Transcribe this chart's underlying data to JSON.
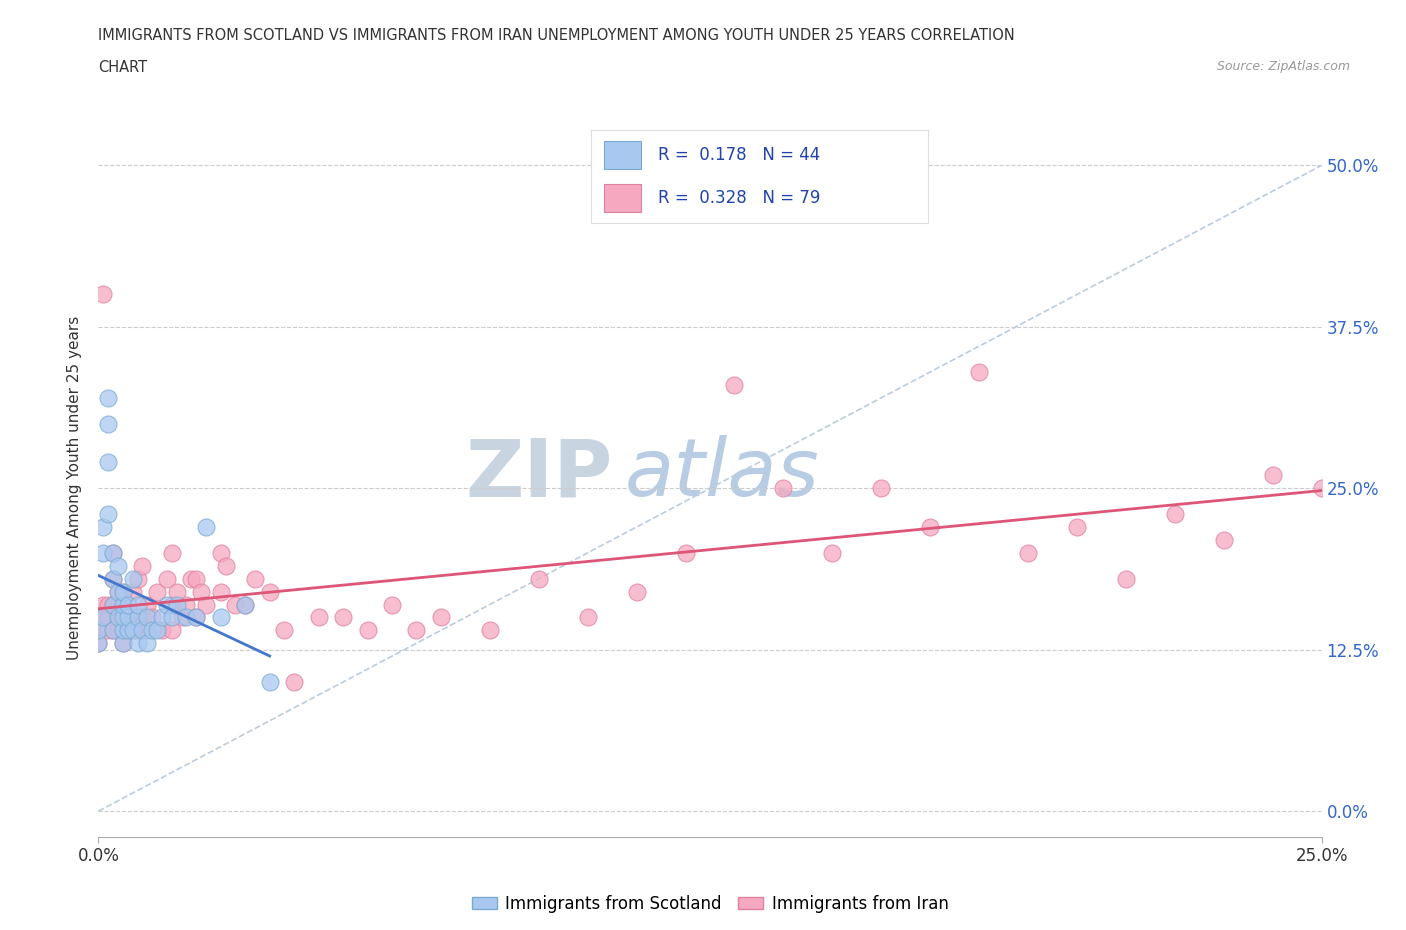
{
  "title_line1": "IMMIGRANTS FROM SCOTLAND VS IMMIGRANTS FROM IRAN UNEMPLOYMENT AMONG YOUTH UNDER 25 YEARS CORRELATION",
  "title_line2": "CHART",
  "source": "Source: ZipAtlas.com",
  "ylabel": "Unemployment Among Youth under 25 years",
  "xlabel_scotland": "Immigrants from Scotland",
  "xlabel_iran": "Immigrants from Iran",
  "xlim": [
    0.0,
    0.25
  ],
  "ylim": [
    -0.02,
    0.52
  ],
  "yticks_right": [
    0.0,
    0.125,
    0.25,
    0.375,
    0.5
  ],
  "ytick_labels_right": [
    "0.0%",
    "12.5%",
    "25.0%",
    "37.5%",
    "50.0%"
  ],
  "xticks": [
    0.0,
    0.25
  ],
  "xtick_labels": [
    "0.0%",
    "25.0%"
  ],
  "scotland_color": "#A8C8F0",
  "iran_color": "#F5A8C0",
  "scotland_edge": "#7AAAD0",
  "iran_edge": "#E080A0",
  "trend_scotland_color": "#4477CC",
  "trend_iran_color": "#DD5577",
  "trend_ref_color": "#BBCCDD",
  "R_scotland": 0.178,
  "N_scotland": 44,
  "R_iran": 0.328,
  "N_iran": 79,
  "scotland_x": [
    0.0,
    0.0,
    0.001,
    0.001,
    0.001,
    0.002,
    0.002,
    0.002,
    0.002,
    0.003,
    0.003,
    0.003,
    0.003,
    0.004,
    0.004,
    0.004,
    0.005,
    0.005,
    0.005,
    0.005,
    0.005,
    0.006,
    0.006,
    0.006,
    0.007,
    0.007,
    0.008,
    0.008,
    0.008,
    0.009,
    0.01,
    0.01,
    0.011,
    0.012,
    0.013,
    0.014,
    0.015,
    0.016,
    0.018,
    0.02,
    0.022,
    0.025,
    0.03,
    0.035
  ],
  "scotland_y": [
    0.13,
    0.14,
    0.2,
    0.15,
    0.22,
    0.23,
    0.27,
    0.3,
    0.32,
    0.14,
    0.16,
    0.18,
    0.2,
    0.15,
    0.17,
    0.19,
    0.13,
    0.14,
    0.15,
    0.16,
    0.17,
    0.14,
    0.15,
    0.16,
    0.14,
    0.18,
    0.13,
    0.15,
    0.16,
    0.14,
    0.13,
    0.15,
    0.14,
    0.14,
    0.15,
    0.16,
    0.15,
    0.16,
    0.15,
    0.15,
    0.22,
    0.15,
    0.16,
    0.1
  ],
  "iran_x": [
    0.0,
    0.0,
    0.001,
    0.001,
    0.001,
    0.002,
    0.002,
    0.002,
    0.003,
    0.003,
    0.003,
    0.003,
    0.004,
    0.004,
    0.004,
    0.005,
    0.005,
    0.005,
    0.005,
    0.006,
    0.006,
    0.007,
    0.007,
    0.007,
    0.008,
    0.008,
    0.008,
    0.009,
    0.009,
    0.01,
    0.01,
    0.011,
    0.012,
    0.013,
    0.014,
    0.015,
    0.015,
    0.015,
    0.016,
    0.017,
    0.018,
    0.019,
    0.02,
    0.02,
    0.021,
    0.022,
    0.025,
    0.025,
    0.026,
    0.028,
    0.03,
    0.032,
    0.035,
    0.038,
    0.04,
    0.045,
    0.05,
    0.055,
    0.06,
    0.065,
    0.07,
    0.08,
    0.09,
    0.1,
    0.11,
    0.12,
    0.13,
    0.14,
    0.15,
    0.16,
    0.17,
    0.18,
    0.19,
    0.2,
    0.21,
    0.22,
    0.23,
    0.24,
    0.25
  ],
  "iran_y": [
    0.13,
    0.14,
    0.15,
    0.16,
    0.4,
    0.14,
    0.15,
    0.16,
    0.14,
    0.16,
    0.18,
    0.2,
    0.14,
    0.15,
    0.17,
    0.13,
    0.14,
    0.16,
    0.17,
    0.14,
    0.16,
    0.14,
    0.15,
    0.17,
    0.14,
    0.15,
    0.18,
    0.15,
    0.19,
    0.14,
    0.16,
    0.15,
    0.17,
    0.14,
    0.18,
    0.14,
    0.16,
    0.2,
    0.17,
    0.15,
    0.16,
    0.18,
    0.15,
    0.18,
    0.17,
    0.16,
    0.17,
    0.2,
    0.19,
    0.16,
    0.16,
    0.18,
    0.17,
    0.14,
    0.1,
    0.15,
    0.15,
    0.14,
    0.16,
    0.14,
    0.15,
    0.14,
    0.18,
    0.15,
    0.17,
    0.2,
    0.33,
    0.25,
    0.2,
    0.25,
    0.22,
    0.34,
    0.2,
    0.22,
    0.18,
    0.23,
    0.21,
    0.26,
    0.25
  ],
  "background_color": "#FFFFFF",
  "grid_color": "#CCCCCC",
  "watermark_zip": "ZIP",
  "watermark_atlas": "atlas",
  "watermark_zip_color": "#C8D4E0",
  "watermark_atlas_color": "#B8CCE4"
}
